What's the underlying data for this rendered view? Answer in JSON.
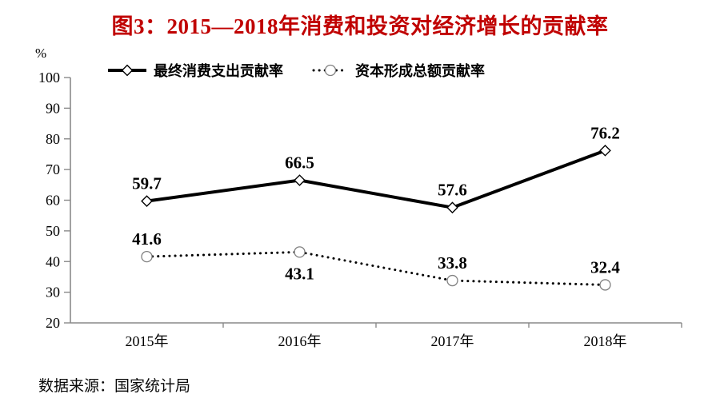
{
  "title": "图3：2015—2018年消费和投资对经济增长的贡献率",
  "source_note": "数据来源：国家统计局",
  "colors": {
    "title": "#c00000",
    "series": "#000000",
    "axis": "#8a8a8a",
    "marker_circle_stroke": "#808080",
    "background": "#ffffff"
  },
  "chart_data": {
    "type": "line",
    "categories": [
      "2015年",
      "2016年",
      "2017年",
      "2018年"
    ],
    "series": [
      {
        "name": "最终消费支出贡献率",
        "values": [
          59.7,
          66.5,
          57.6,
          76.2
        ],
        "line_style": "solid",
        "marker": "diamond",
        "label_positions": [
          "above",
          "above",
          "above",
          "above"
        ]
      },
      {
        "name": "资本形成总额贡献率",
        "values": [
          41.6,
          43.1,
          33.8,
          32.4
        ],
        "line_style": "dotted",
        "marker": "circle",
        "label_positions": [
          "above",
          "below",
          "above",
          "above"
        ]
      }
    ],
    "xlabel": "",
    "ylabel": "%",
    "ylim": [
      20,
      100
    ],
    "yticks": [
      100,
      90,
      80,
      70,
      60,
      50,
      40,
      30,
      20
    ],
    "grid": false,
    "legend_position": "top-left"
  }
}
